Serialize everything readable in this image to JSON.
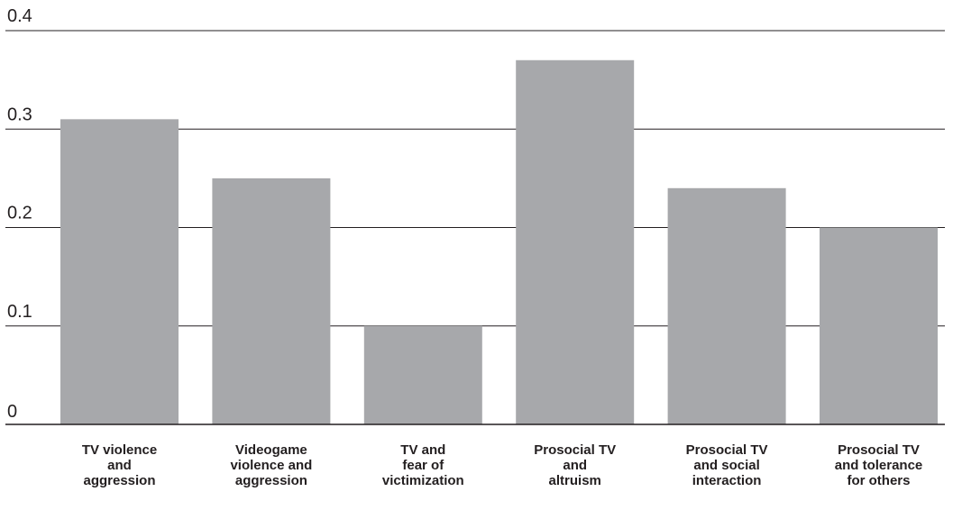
{
  "chart_data": {
    "type": "bar",
    "title": "",
    "xlabel": "",
    "ylabel": "",
    "ylim": [
      0,
      0.4
    ],
    "y_ticks": [
      "0",
      "0.1",
      "0.2",
      "0.3",
      "0.4"
    ],
    "y_tick_values": [
      0,
      0.1,
      0.2,
      0.3,
      0.4
    ],
    "grid": true,
    "categories": [
      [
        "TV violence",
        "and",
        "aggression"
      ],
      [
        "Videogame",
        "violence and",
        "aggression"
      ],
      [
        "TV and",
        "fear of",
        "victimization"
      ],
      [
        "Prosocial TV",
        "and",
        "altruism"
      ],
      [
        "Prosocial TV",
        "and social",
        "interaction"
      ],
      [
        "Prosocial TV",
        "and tolerance",
        "for others"
      ]
    ],
    "values": [
      0.31,
      0.25,
      0.1,
      0.37,
      0.24,
      0.2
    ],
    "colors": {
      "bar": "#a7a8ab",
      "grid": "#231f20",
      "text": "#231f20"
    }
  }
}
